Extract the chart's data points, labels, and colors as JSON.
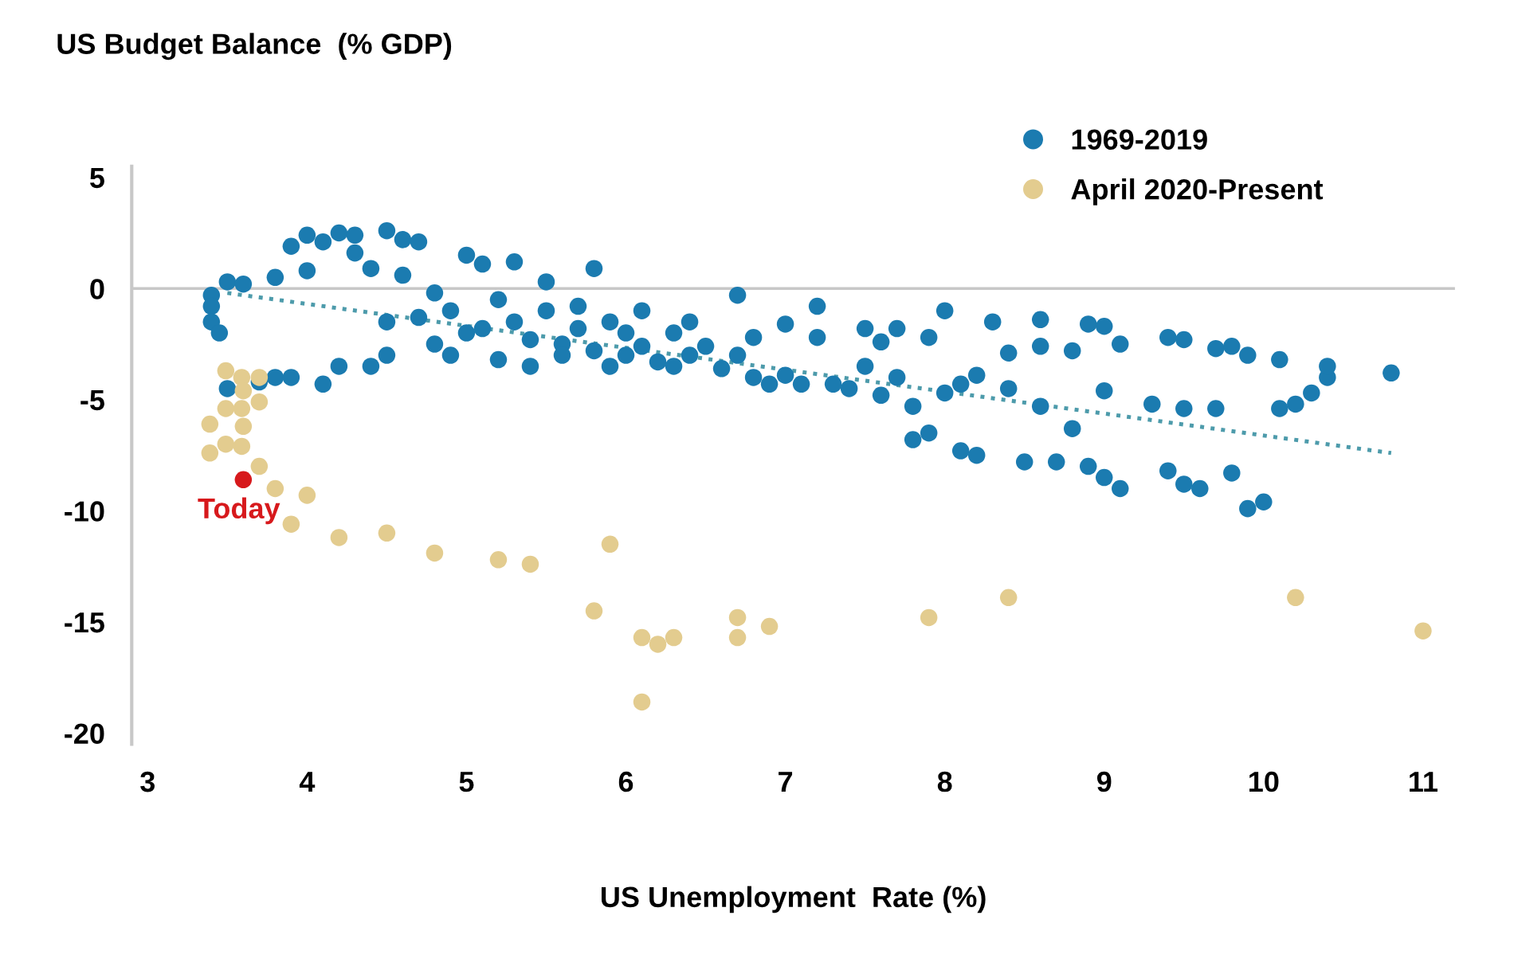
{
  "chart_data": {
    "type": "scatter",
    "title": "US Budget Balance  (% GDP)",
    "xlabel": "US Unemployment  Rate (%)",
    "xlim": [
      2.9,
      11.2
    ],
    "ylim": [
      -20.5,
      5.5
    ],
    "xticks": [
      3,
      4,
      5,
      6,
      7,
      8,
      9,
      10,
      11
    ],
    "yticks": [
      5,
      0,
      -5,
      -10,
      -15,
      -20
    ],
    "grid": false,
    "legend": "top right",
    "marker": "circle",
    "ref_lines": [
      {
        "axis": "y",
        "value": 0,
        "label": null,
        "color": "#c8c8c8",
        "line_style": "solid"
      }
    ],
    "annotations": [
      {
        "text": "Today",
        "x": 3.6,
        "y": -8.6
      }
    ],
    "series": [
      {
        "name": "1969-2019",
        "color": "#1b7bb0",
        "x": [
          3.4,
          3.4,
          3.4,
          3.45,
          3.5,
          3.5,
          3.6,
          3.7,
          3.8,
          3.8,
          3.9,
          3.9,
          4.0,
          4.0,
          4.1,
          4.1,
          4.2,
          4.2,
          4.3,
          4.3,
          4.4,
          4.4,
          4.5,
          4.5,
          4.5,
          4.6,
          4.6,
          4.7,
          4.7,
          4.8,
          4.8,
          4.9,
          4.9,
          5.0,
          5.0,
          5.1,
          5.1,
          5.2,
          5.2,
          5.3,
          5.3,
          5.4,
          5.4,
          5.5,
          5.5,
          5.6,
          5.6,
          5.7,
          5.7,
          5.8,
          5.8,
          5.9,
          5.9,
          6.0,
          6.0,
          6.1,
          6.1,
          6.2,
          6.3,
          6.3,
          6.4,
          6.4,
          6.5,
          6.6,
          6.7,
          6.7,
          6.8,
          6.8,
          6.9,
          7.0,
          7.0,
          7.1,
          7.2,
          7.2,
          7.3,
          7.4,
          7.5,
          7.5,
          7.6,
          7.6,
          7.7,
          7.7,
          7.8,
          7.8,
          7.9,
          7.9,
          8.0,
          8.0,
          8.1,
          8.1,
          8.2,
          8.2,
          8.3,
          8.4,
          8.4,
          8.5,
          8.6,
          8.6,
          8.6,
          8.7,
          8.8,
          8.8,
          8.9,
          8.9,
          9.0,
          9.0,
          9.0,
          9.1,
          9.1,
          9.3,
          9.4,
          9.4,
          9.5,
          9.5,
          9.5,
          9.6,
          9.7,
          9.7,
          9.8,
          9.8,
          9.9,
          9.9,
          10.0,
          10.1,
          10.1,
          10.2,
          10.3,
          10.4,
          10.4,
          10.8
        ],
        "values": [
          -0.3,
          -0.8,
          -1.5,
          -2.0,
          0.3,
          -4.5,
          0.2,
          -4.2,
          -4.0,
          0.5,
          1.9,
          -4.0,
          2.4,
          0.8,
          2.1,
          -4.3,
          2.5,
          -3.5,
          1.6,
          2.4,
          -3.5,
          0.9,
          2.6,
          -1.5,
          -3.0,
          2.2,
          0.6,
          2.1,
          -1.3,
          -0.2,
          -2.5,
          -1.0,
          -3.0,
          1.5,
          -2.0,
          1.1,
          -1.8,
          -0.5,
          -3.2,
          1.2,
          -1.5,
          -2.3,
          -3.5,
          0.3,
          -1.0,
          -2.5,
          -3.0,
          -1.8,
          -0.8,
          0.9,
          -2.8,
          -1.5,
          -3.5,
          -2.0,
          -3.0,
          -1.0,
          -2.6,
          -3.3,
          -2.0,
          -3.5,
          -1.5,
          -3.0,
          -2.6,
          -3.6,
          -0.3,
          -3.0,
          -2.2,
          -4.0,
          -4.3,
          -1.6,
          -3.9,
          -4.3,
          -0.8,
          -2.2,
          -4.3,
          -4.5,
          -1.8,
          -3.5,
          -4.8,
          -2.4,
          -1.8,
          -4.0,
          -5.3,
          -6.8,
          -2.2,
          -6.5,
          -1.0,
          -4.7,
          -7.3,
          -4.3,
          -3.9,
          -7.5,
          -1.5,
          -2.9,
          -4.5,
          -7.8,
          -1.4,
          -2.6,
          -5.3,
          -7.8,
          -6.3,
          -2.8,
          -1.6,
          -8.0,
          -1.7,
          -4.6,
          -8.5,
          -9.0,
          -2.5,
          -5.2,
          -2.2,
          -8.2,
          -2.3,
          -5.4,
          -8.8,
          -9.0,
          -2.7,
          -5.4,
          -2.6,
          -8.3,
          -9.9,
          -3.0,
          -9.6,
          -3.2,
          -5.4,
          -5.2,
          -4.7,
          -4.0,
          -3.5,
          -3.8
        ]
      },
      {
        "name": "April 2020-Present",
        "color": "#e3cc8f",
        "x": [
          3.49,
          3.59,
          3.7,
          3.6,
          3.49,
          3.59,
          3.7,
          3.39,
          3.6,
          3.49,
          3.59,
          3.39,
          3.7,
          3.8,
          4.0,
          3.9,
          4.2,
          4.5,
          4.8,
          5.2,
          5.4,
          5.8,
          5.9,
          6.1,
          6.2,
          6.3,
          6.7,
          6.7,
          6.9,
          6.1,
          7.9,
          8.4,
          10.2,
          11.0
        ],
        "values": [
          -3.7,
          -4.0,
          -4.0,
          -4.6,
          -5.4,
          -5.4,
          -5.1,
          -6.1,
          -6.2,
          -7.0,
          -7.1,
          -7.4,
          -8.0,
          -9.0,
          -9.3,
          -10.6,
          -11.2,
          -11.0,
          -11.9,
          -12.2,
          -12.4,
          -14.5,
          -11.5,
          -15.7,
          -16.0,
          -15.7,
          -14.8,
          -15.7,
          -15.2,
          -18.6,
          -14.8,
          -13.9,
          -13.9,
          -15.4
        ]
      },
      {
        "color": "#d7191c",
        "x": [
          3.6
        ],
        "values": [
          -8.6
        ]
      },
      {
        "type": "line",
        "color": "#4d9bab",
        "line_style": "dotted",
        "marker": "none",
        "x": [
          3.5,
          10.8
        ],
        "values": [
          -0.2,
          -7.4
        ]
      }
    ]
  }
}
